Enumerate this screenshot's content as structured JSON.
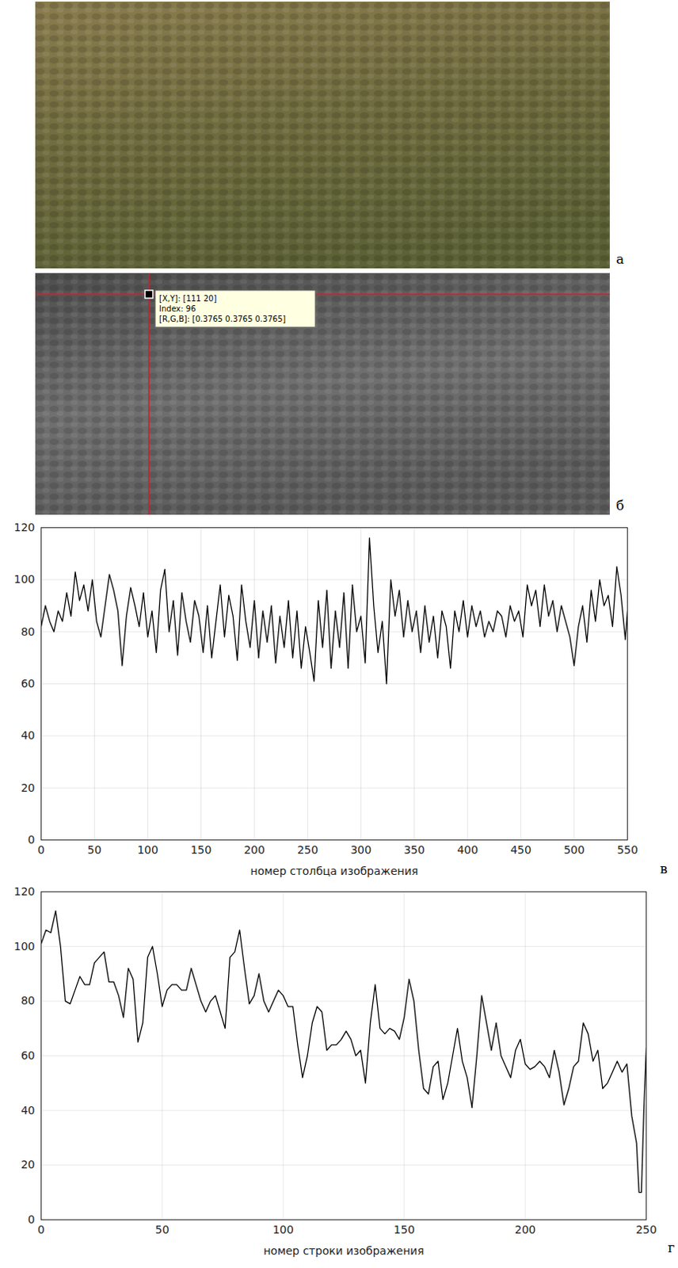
{
  "images": [
    {
      "panel_label": "а"
    },
    {
      "panel_label": "б",
      "tooltip": [
        "[X,Y]: [111 20]",
        "Index: 96",
        "[R,G,B]: [0.3765 0.3765 0.3765]"
      ]
    }
  ],
  "chart_data": [
    {
      "type": "line",
      "panel_label": "в",
      "x_label": "номер столбца изображения",
      "color": "#000000",
      "grid": true,
      "xlim": [
        0,
        550
      ],
      "ylim": [
        0,
        120
      ],
      "xticks": [
        0,
        50,
        100,
        150,
        200,
        250,
        300,
        350,
        400,
        450,
        500,
        550
      ],
      "yticks": [
        0,
        20,
        40,
        60,
        80,
        100,
        120
      ],
      "x": [
        0,
        4,
        8,
        12,
        16,
        20,
        24,
        28,
        32,
        36,
        40,
        44,
        48,
        52,
        56,
        60,
        64,
        68,
        72,
        76,
        80,
        84,
        88,
        92,
        96,
        100,
        104,
        108,
        112,
        116,
        120,
        124,
        128,
        132,
        136,
        140,
        144,
        148,
        152,
        156,
        160,
        164,
        168,
        172,
        176,
        180,
        184,
        188,
        192,
        196,
        200,
        204,
        208,
        212,
        216,
        220,
        224,
        228,
        232,
        236,
        240,
        244,
        248,
        252,
        256,
        260,
        264,
        268,
        272,
        276,
        280,
        284,
        288,
        292,
        296,
        300,
        304,
        308,
        312,
        316,
        320,
        324,
        328,
        332,
        336,
        340,
        344,
        348,
        352,
        356,
        360,
        364,
        368,
        372,
        376,
        380,
        384,
        388,
        392,
        396,
        400,
        404,
        408,
        412,
        416,
        420,
        424,
        428,
        432,
        436,
        440,
        444,
        448,
        452,
        456,
        460,
        464,
        468,
        472,
        476,
        480,
        484,
        488,
        492,
        496,
        500,
        504,
        508,
        512,
        516,
        520,
        524,
        528,
        532,
        536,
        540,
        544,
        548,
        550
      ],
      "values": [
        82,
        90,
        84,
        80,
        88,
        84,
        95,
        86,
        103,
        92,
        98,
        88,
        100,
        84,
        78,
        90,
        102,
        96,
        88,
        67,
        86,
        97,
        90,
        82,
        95,
        78,
        88,
        72,
        96,
        104,
        80,
        92,
        71,
        95,
        84,
        76,
        92,
        86,
        72,
        90,
        70,
        84,
        98,
        78,
        94,
        86,
        69,
        98,
        84,
        74,
        92,
        70,
        88,
        76,
        90,
        68,
        86,
        74,
        92,
        70,
        88,
        66,
        82,
        72,
        61,
        92,
        74,
        96,
        66,
        88,
        74,
        95,
        66,
        98,
        80,
        86,
        68,
        116,
        90,
        72,
        84,
        60,
        100,
        86,
        96,
        78,
        92,
        80,
        88,
        72,
        90,
        76,
        86,
        70,
        88,
        82,
        66,
        88,
        80,
        92,
        78,
        90,
        82,
        88,
        78,
        84,
        80,
        88,
        86,
        78,
        90,
        84,
        88,
        78,
        98,
        90,
        96,
        82,
        98,
        86,
        92,
        80,
        90,
        84,
        78,
        67,
        82,
        90,
        76,
        96,
        84,
        100,
        90,
        94,
        82,
        105,
        94,
        77,
        88
      ]
    },
    {
      "type": "line",
      "panel_label": "г",
      "x_label": "номер строки изображения",
      "color": "#000000",
      "grid": true,
      "xlim": [
        0,
        250
      ],
      "ylim": [
        0,
        120
      ],
      "xticks": [
        0,
        50,
        100,
        150,
        200,
        250
      ],
      "yticks": [
        0,
        20,
        40,
        60,
        80,
        100,
        120
      ],
      "x": [
        0,
        2,
        4,
        6,
        8,
        10,
        12,
        14,
        16,
        18,
        20,
        22,
        24,
        26,
        28,
        30,
        32,
        34,
        36,
        38,
        40,
        42,
        44,
        46,
        48,
        50,
        52,
        54,
        56,
        58,
        60,
        62,
        64,
        66,
        68,
        70,
        72,
        74,
        76,
        78,
        80,
        82,
        84,
        86,
        88,
        90,
        92,
        94,
        96,
        98,
        100,
        102,
        104,
        106,
        108,
        110,
        112,
        114,
        116,
        118,
        120,
        122,
        124,
        126,
        128,
        130,
        132,
        134,
        136,
        138,
        140,
        142,
        144,
        146,
        148,
        150,
        152,
        154,
        156,
        158,
        160,
        162,
        164,
        166,
        168,
        170,
        172,
        174,
        176,
        178,
        180,
        182,
        184,
        186,
        188,
        190,
        192,
        194,
        196,
        198,
        200,
        202,
        204,
        206,
        208,
        210,
        212,
        214,
        216,
        218,
        220,
        222,
        224,
        226,
        228,
        230,
        232,
        234,
        236,
        238,
        240,
        242,
        244,
        246,
        247,
        248,
        249,
        250
      ],
      "values": [
        101,
        106,
        105,
        113,
        100,
        80,
        79,
        84,
        89,
        86,
        86,
        94,
        96,
        98,
        87,
        87,
        82,
        74,
        92,
        88,
        65,
        72,
        96,
        100,
        90,
        78,
        84,
        86,
        86,
        84,
        84,
        92,
        86,
        80,
        76,
        80,
        82,
        76,
        70,
        96,
        98,
        106,
        92,
        79,
        82,
        90,
        80,
        76,
        80,
        84,
        82,
        78,
        78,
        64,
        52,
        60,
        72,
        78,
        76,
        62,
        64,
        64,
        66,
        69,
        66,
        60,
        62,
        50,
        72,
        86,
        70,
        68,
        70,
        69,
        66,
        74,
        88,
        80,
        62,
        48,
        46,
        56,
        58,
        44,
        50,
        60,
        70,
        58,
        52,
        41,
        60,
        82,
        72,
        62,
        72,
        60,
        56,
        52,
        62,
        66,
        57,
        55,
        56,
        58,
        56,
        52,
        62,
        54,
        42,
        48,
        56,
        58,
        72,
        68,
        58,
        62,
        48,
        50,
        54,
        58,
        54,
        57,
        38,
        28,
        10,
        10,
        40,
        63
      ]
    }
  ]
}
